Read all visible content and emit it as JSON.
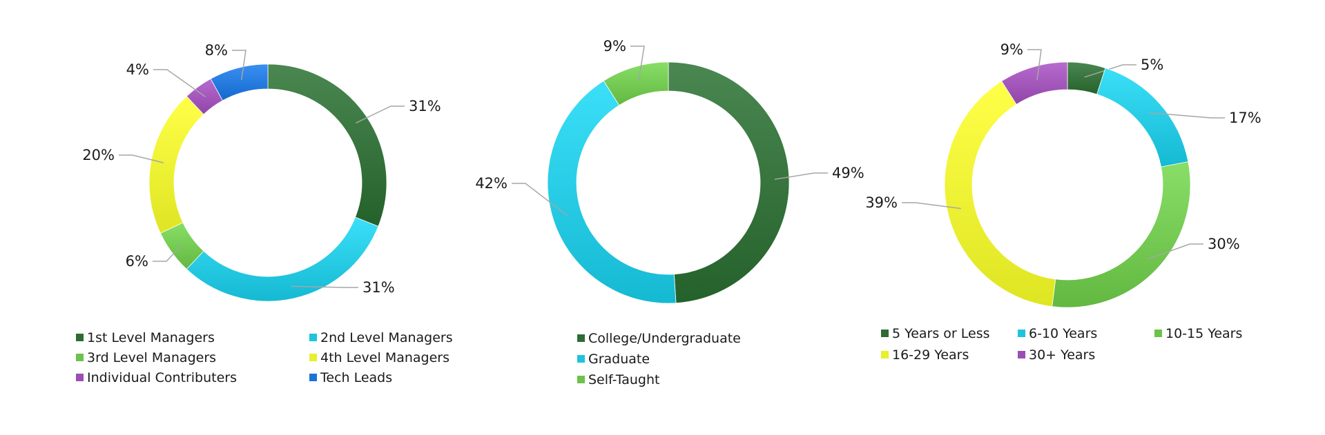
{
  "chart_data": [
    {
      "type": "pie",
      "donut": true,
      "categories": [
        "1st Level Managers",
        "2nd Level Managers",
        "3rd Level Managers",
        "4th Level Managers",
        "Individual Contributers",
        "Tech Leads"
      ],
      "values": [
        31,
        31,
        6,
        20,
        4,
        8
      ],
      "labels": [
        "31%",
        "31%",
        "6%",
        "20%",
        "4%",
        "8%"
      ],
      "colors": [
        "#2e6b35",
        "#1fc3dc",
        "#6cc24a",
        "#e8ef2c",
        "#9b4fb3",
        "#1e73d6"
      ],
      "legend": "bottom"
    },
    {
      "type": "pie",
      "donut": true,
      "categories": [
        "College/Undergraduate",
        "Graduate",
        "Self-Taught"
      ],
      "values": [
        49,
        42,
        9
      ],
      "labels": [
        "49%",
        "42%",
        "9%"
      ],
      "colors": [
        "#2e6b35",
        "#1fc3dc",
        "#6cc24a"
      ],
      "legend": "bottom"
    },
    {
      "type": "pie",
      "donut": true,
      "categories": [
        "5 Years or Less",
        "6-10 Years",
        "10-15 Years",
        "16-29 Years",
        "30+ Years"
      ],
      "values": [
        5,
        17,
        30,
        39,
        9
      ],
      "labels": [
        "5%",
        "17%",
        "30%",
        "39%",
        "9%"
      ],
      "colors": [
        "#2e6b35",
        "#1fc3dc",
        "#6cc24a",
        "#e8ef2c",
        "#9b4fb3"
      ],
      "legend": "bottom"
    }
  ]
}
